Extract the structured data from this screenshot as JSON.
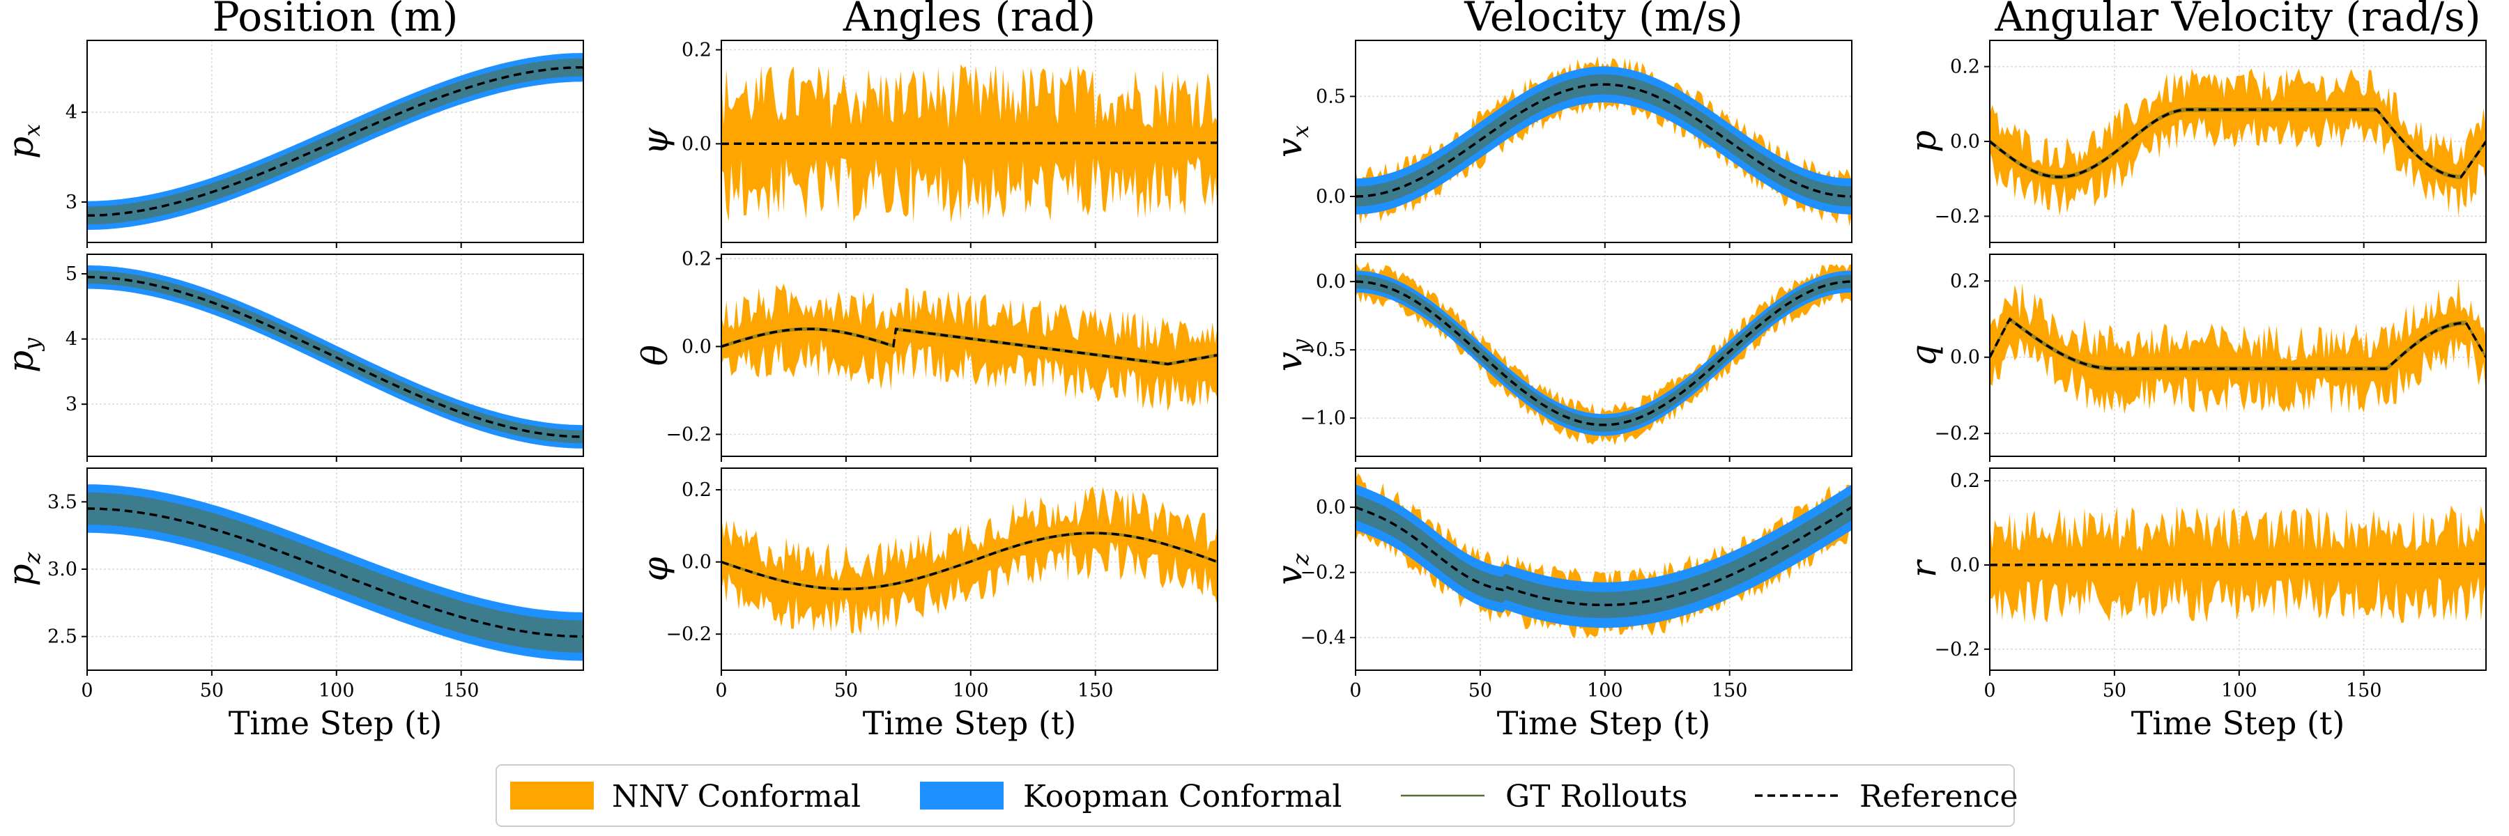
{
  "chart_data": {
    "type": "line",
    "n_steps": 200,
    "xlim": [
      0,
      199
    ],
    "xticks": [
      0,
      50,
      100,
      150
    ],
    "xticklabels": [
      "0",
      "50",
      "100",
      "150"
    ],
    "xlabel": "Time Step (t)",
    "grid": true,
    "legend_position": "bottom-center",
    "columns": [
      "Position (m)",
      "Angles (rad)",
      "Velocity (m/s)",
      "Angular Velocity (rad/s)"
    ],
    "legend": [
      {
        "name": "NNV Conformal",
        "color": "#FFA500",
        "style": "fill"
      },
      {
        "name": "Koopman Conformal",
        "color": "#1E90FF",
        "style": "fill"
      },
      {
        "name": "GT Rollouts",
        "color": "#556B2F",
        "style": "line"
      },
      {
        "name": "Reference",
        "color": "#000000",
        "style": "dashed"
      }
    ],
    "series": [
      {
        "name": "NNV Conformal",
        "color": "#FFA500"
      },
      {
        "name": "Koopman Conformal",
        "color": "#1E90FF"
      },
      {
        "name": "GT Rollouts",
        "color": "#556B2F"
      },
      {
        "name": "Reference",
        "color": "#000000"
      }
    ],
    "panels": [
      {
        "ylabel": "p",
        "sub": "x",
        "ylim": [
          2.55,
          4.8
        ],
        "yticks": [
          3,
          4
        ],
        "yticklabels": [
          "3",
          "4"
        ],
        "reference": {
          "shape": "sigmoid",
          "start": 2.85,
          "end": 4.5
        },
        "nnv": {
          "half_width": 0.07,
          "noise": 0.03
        },
        "koopman": {
          "half_width": 0.16
        },
        "gt": {
          "half_width": 0.1
        }
      },
      {
        "ylabel": "ψ",
        "sub": "",
        "ylim": [
          -0.21,
          0.22
        ],
        "yticks": [
          0.2,
          0.0
        ],
        "yticklabels": [
          "0.2",
          "0.0"
        ],
        "reference": {
          "shape": "flat",
          "start": 0.0,
          "end": 0.002
        },
        "nnv": {
          "half_width": 0.03,
          "noise": 0.14
        },
        "koopman": {
          "half_width": 0.0
        },
        "gt": {
          "half_width": 0.0
        }
      },
      {
        "ylabel": "v",
        "sub": "x",
        "ylim": [
          -0.23,
          0.78
        ],
        "yticks": [
          0.5,
          0.0
        ],
        "yticklabels": [
          "0.5",
          "0.0"
        ],
        "reference": {
          "shape": "bump",
          "amp": 0.56,
          "base": 0.0
        },
        "nnv": {
          "half_width": 0.05,
          "noise": 0.1
        },
        "koopman": {
          "half_width": 0.09
        },
        "gt": {
          "half_width": 0.05
        }
      },
      {
        "ylabel": "p",
        "sub": "",
        "ylim": [
          -0.27,
          0.27
        ],
        "yticks": [
          0.2,
          0.0,
          -0.2
        ],
        "yticklabels": [
          "0.2",
          "0.0",
          "−0.2"
        ],
        "reference": {
          "shape": "angvel_p"
        },
        "nnv": {
          "half_width": 0.02,
          "noise": 0.09
        },
        "koopman": {
          "half_width": 0.012
        },
        "gt": {
          "half_width": 0.006
        }
      },
      {
        "ylabel": "p",
        "sub": "y",
        "ylim": [
          2.2,
          5.3
        ],
        "yticks": [
          5,
          4,
          3
        ],
        "yticklabels": [
          "5",
          "4",
          "3"
        ],
        "reference": {
          "shape": "sigmoid",
          "start": 4.95,
          "end": 2.5
        },
        "nnv": {
          "half_width": 0.08,
          "noise": 0.04
        },
        "koopman": {
          "half_width": 0.18
        },
        "gt": {
          "half_width": 0.1
        }
      },
      {
        "ylabel": "θ",
        "sub": "",
        "ylim": [
          -0.25,
          0.21
        ],
        "yticks": [
          0.2,
          0.0,
          -0.2
        ],
        "yticklabels": [
          "0.2",
          "0.0",
          "−0.2"
        ],
        "reference": {
          "shape": "angle_theta"
        },
        "nnv": {
          "half_width": 0.02,
          "noise": 0.09
        },
        "koopman": {
          "half_width": 0.006
        },
        "gt": {
          "half_width": 0.004
        }
      },
      {
        "ylabel": "v",
        "sub": "y",
        "ylim": [
          -1.28,
          0.2
        ],
        "yticks": [
          0.0,
          -0.5,
          -1.0
        ],
        "yticklabels": [
          "0.0",
          "−0.5",
          "−1.0"
        ],
        "reference": {
          "shape": "bump",
          "amp": -1.05,
          "base": 0.0
        },
        "nnv": {
          "half_width": 0.06,
          "noise": 0.1
        },
        "koopman": {
          "half_width": 0.08
        },
        "gt": {
          "half_width": 0.05
        }
      },
      {
        "ylabel": "q",
        "sub": "",
        "ylim": [
          -0.26,
          0.27
        ],
        "yticks": [
          0.2,
          0.0,
          -0.2
        ],
        "yticklabels": [
          "0.2",
          "0.0",
          "−0.2"
        ],
        "reference": {
          "shape": "angvel_q"
        },
        "nnv": {
          "half_width": 0.02,
          "noise": 0.1
        },
        "koopman": {
          "half_width": 0.012
        },
        "gt": {
          "half_width": 0.006
        }
      },
      {
        "ylabel": "p",
        "sub": "z",
        "ylim": [
          2.25,
          3.75
        ],
        "yticks": [
          3.5,
          3.0,
          2.5
        ],
        "yticklabels": [
          "3.5",
          "3.0",
          "2.5"
        ],
        "reference": {
          "shape": "sigmoid",
          "start": 3.45,
          "end": 2.5
        },
        "nnv": {
          "half_width": 0.08,
          "noise": 0.04
        },
        "koopman": {
          "half_width": 0.18
        },
        "gt": {
          "half_width": 0.12
        }
      },
      {
        "ylabel": "φ",
        "sub": "",
        "ylim": [
          -0.3,
          0.26
        ],
        "yticks": [
          0.2,
          0.0,
          -0.2
        ],
        "yticklabels": [
          "0.2",
          "0.0",
          "−0.2"
        ],
        "reference": {
          "shape": "angle_phi"
        },
        "nnv": {
          "half_width": 0.02,
          "noise": 0.11
        },
        "koopman": {
          "half_width": 0.006
        },
        "gt": {
          "half_width": 0.004
        }
      },
      {
        "ylabel": "v",
        "sub": "z",
        "ylim": [
          -0.5,
          0.12
        ],
        "yticks": [
          0.0,
          -0.2,
          -0.4
        ],
        "yticklabels": [
          "0.0",
          "−0.2",
          "−0.4"
        ],
        "reference": {
          "shape": "vz"
        },
        "nnv": {
          "half_width": 0.05,
          "noise": 0.06
        },
        "koopman": {
          "half_width": 0.07
        },
        "gt": {
          "half_width": 0.04
        }
      },
      {
        "ylabel": "r",
        "sub": "",
        "ylim": [
          -0.25,
          0.23
        ],
        "yticks": [
          0.2,
          0.0,
          -0.2
        ],
        "yticklabels": [
          "0.2",
          "0.0",
          "−0.2"
        ],
        "reference": {
          "shape": "flat",
          "start": 0.0,
          "end": 0.003
        },
        "nnv": {
          "half_width": 0.03,
          "noise": 0.11
        },
        "koopman": {
          "half_width": 0.0
        },
        "gt": {
          "half_width": 0.0
        }
      }
    ]
  }
}
